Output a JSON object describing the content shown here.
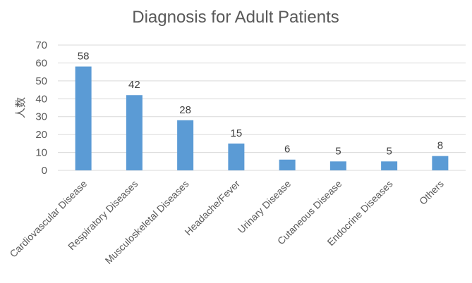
{
  "chart_data": {
    "type": "bar",
    "title": "Diagnosis for Adult Patients",
    "xlabel": "",
    "ylabel": "人数",
    "categories": [
      "Cardiovascular Disease",
      "Respiratory Diseases",
      "Musculoskeletal Diseases",
      "Headache/Fever",
      "Urinary  Disease",
      "Cutaneous Disease",
      "Endocrine Diseases",
      "Others"
    ],
    "values": [
      58,
      42,
      28,
      15,
      6,
      5,
      5,
      8
    ],
    "ylim": [
      0,
      70
    ],
    "yticks": [
      0,
      10,
      20,
      30,
      40,
      50,
      60,
      70
    ],
    "grid": true,
    "legend": "none",
    "bar_color": "#5b9bd5"
  }
}
